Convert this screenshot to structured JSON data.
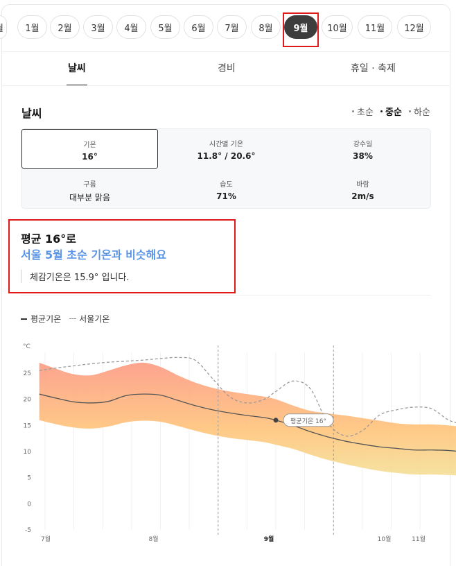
{
  "months": {
    "items": [
      "월",
      "1월",
      "2월",
      "3월",
      "4월",
      "5월",
      "6월",
      "7월",
      "8월",
      "9월",
      "10월",
      "11월",
      "12월"
    ],
    "selected_index": 9
  },
  "tabs": [
    {
      "label": "날씨",
      "active": true
    },
    {
      "label": "경비",
      "active": false
    },
    {
      "label": "휴일 · 축제",
      "active": false
    }
  ],
  "weather": {
    "title": "날씨",
    "periods": [
      {
        "label": "초순",
        "active": false
      },
      {
        "label": "중순",
        "active": true
      },
      {
        "label": "하순",
        "active": false
      }
    ],
    "cells": [
      {
        "label": "기온",
        "value": "16°"
      },
      {
        "label": "시간별 기온",
        "value": "11.8° / 20.6°"
      },
      {
        "label": "강수일",
        "value": "38%"
      },
      {
        "label": "구름",
        "value": "대부분 맑음"
      },
      {
        "label": "습도",
        "value": "71%"
      },
      {
        "label": "바람",
        "value": "2m/s"
      }
    ]
  },
  "summary": {
    "avg_title": "평균 16°로",
    "compare": "서울 5월 초순 기온과 비슷해요",
    "feels_like": "체감기온은 15.9° 입니다."
  },
  "legend": {
    "avg": "평균기온",
    "seoul": "서울기온"
  },
  "chart_data": {
    "type": "line",
    "ylabel": "°C",
    "ylim": [
      -5,
      30
    ],
    "yticks": [
      -5,
      0,
      5,
      10,
      15,
      20,
      25
    ],
    "x_ticks": [
      "7월",
      "8월",
      "9월",
      "10월",
      "11월"
    ],
    "x_bold": "9월",
    "x_positions_months": [
      7,
      8,
      9,
      10,
      11
    ],
    "x": [
      6.95,
      7.1,
      7.25,
      7.4,
      7.55,
      7.7,
      7.85,
      8.0,
      8.15,
      8.3,
      8.45,
      8.6,
      8.75,
      8.9,
      9.0,
      9.15,
      9.3,
      9.45,
      9.6,
      9.75,
      9.9,
      10.05,
      10.2,
      10.35,
      10.5,
      10.65,
      10.8,
      10.95,
      11.05
    ],
    "series": [
      {
        "name": "평균기온",
        "values": [
          21.0,
          20.2,
          19.5,
          19.3,
          19.6,
          20.7,
          21.0,
          20.8,
          19.8,
          18.8,
          18.0,
          17.4,
          16.9,
          16.5,
          16.0,
          15.0,
          13.8,
          12.8,
          12.0,
          11.4,
          10.9,
          10.6,
          10.3,
          10.3,
          10.2,
          9.8,
          9.0,
          7.8,
          7.0
        ]
      },
      {
        "name": "서울기온",
        "values": [
          25.5,
          26.0,
          26.4,
          26.8,
          27.1,
          27.3,
          27.5,
          27.8,
          28.0,
          27.5,
          24.0,
          20.5,
          19.3,
          20.0,
          21.5,
          23.5,
          22.0,
          15.5,
          13.0,
          14.0,
          17.0,
          18.0,
          18.5,
          18.2,
          16.0,
          15.0,
          13.5,
          11.0,
          8.0
        ]
      },
      {
        "name": "upper",
        "values": [
          27.0,
          25.8,
          24.8,
          24.6,
          25.5,
          26.5,
          27.0,
          26.2,
          24.6,
          23.2,
          22.2,
          21.5,
          21.0,
          20.5,
          20.0,
          18.8,
          17.8,
          17.3,
          16.9,
          16.4,
          15.9,
          15.4,
          15.2,
          15.2,
          15.0,
          14.6,
          13.9,
          12.5,
          11.2
        ]
      },
      {
        "name": "lower",
        "values": [
          16.0,
          15.2,
          14.6,
          14.4,
          14.8,
          15.6,
          15.9,
          15.7,
          14.9,
          14.0,
          13.2,
          12.6,
          12.2,
          11.8,
          11.3,
          10.5,
          9.4,
          8.4,
          7.6,
          6.9,
          6.3,
          5.9,
          5.6,
          5.6,
          5.5,
          5.3,
          4.9,
          4.4,
          4.0
        ]
      }
    ],
    "vlines_months": [
      8.5,
      9.5
    ],
    "marker": {
      "x": 9.0,
      "y": 16.0,
      "label": "평균기온 16°"
    },
    "colors": {
      "band_top": "#fc9a83",
      "band_mid": "#ffc37a",
      "band_bottom": "#f3e39b",
      "avg_line": "#555555",
      "seoul_line": "#9a9a9a"
    }
  }
}
